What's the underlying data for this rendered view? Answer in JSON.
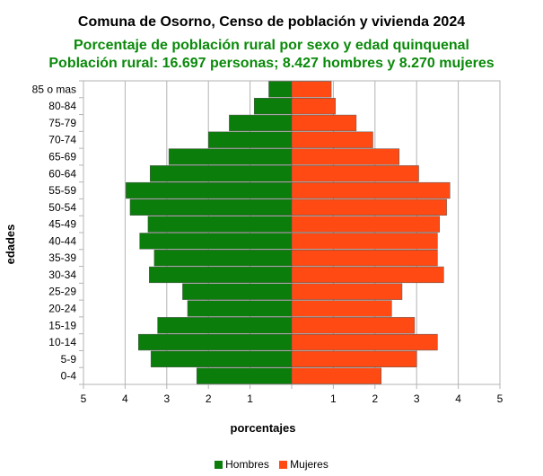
{
  "chart_data": {
    "type": "bar",
    "orientation": "horizontal-population-pyramid",
    "title": "Comuna de Osorno, Censo de población y vivienda 2024",
    "subtitle_1": "Porcentaje de población rural por sexo y edad quinquenal",
    "subtitle_2": "Población rural: 16.697 personas; 8.427 hombres y 8.270 mujeres",
    "xlabel": "porcentajes",
    "ylabel": "edades",
    "xlim": [
      -5,
      5
    ],
    "x_ticks": [
      "5",
      "4",
      "3",
      "2",
      "1",
      "",
      "1",
      "2",
      "3",
      "4",
      "5"
    ],
    "grid": true,
    "legend_position": "bottom",
    "categories": [
      "85 o mas",
      "80-84",
      "75-79",
      "70-74",
      "65-69",
      "60-64",
      "55-59",
      "50-54",
      "45-49",
      "40-44",
      "35-39",
      "30-34",
      "25-29",
      "20-24",
      "15-19",
      "10-14",
      "5-9",
      "0-4"
    ],
    "series": [
      {
        "name": "Hombres",
        "color": "#0a7d0a",
        "values": [
          0.55,
          0.9,
          1.5,
          2.0,
          2.95,
          3.4,
          3.98,
          3.88,
          3.45,
          3.65,
          3.3,
          3.42,
          2.62,
          2.5,
          3.22,
          3.68,
          3.38,
          2.28
        ]
      },
      {
        "name": "Mujeres",
        "color": "#ff4a14",
        "values": [
          0.95,
          1.05,
          1.55,
          1.95,
          2.58,
          3.05,
          3.8,
          3.72,
          3.55,
          3.5,
          3.5,
          3.65,
          2.65,
          2.4,
          2.95,
          3.5,
          3.0,
          2.15
        ]
      }
    ]
  }
}
